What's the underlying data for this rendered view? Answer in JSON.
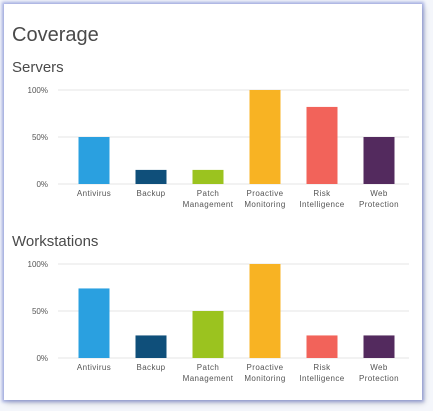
{
  "page_title": "Coverage",
  "chart_data": [
    {
      "type": "bar",
      "title": "Servers",
      "categories": [
        [
          "Antivirus"
        ],
        [
          "Backup"
        ],
        [
          "Patch",
          "Management"
        ],
        [
          "Proactive",
          "Monitoring"
        ],
        [
          "Risk",
          "Intelligence"
        ],
        [
          "Web",
          "Protection"
        ]
      ],
      "values": [
        50,
        15,
        15,
        100,
        82,
        50
      ],
      "colors": [
        "#2aa0e0",
        "#0f4f7a",
        "#9bc31f",
        "#f8b323",
        "#f2635a",
        "#532a5e"
      ],
      "ylim": [
        0,
        100
      ],
      "yticks": [
        {
          "value": 100,
          "label": "100%"
        },
        {
          "value": 50,
          "label": "50%"
        },
        {
          "value": 0,
          "label": "0%"
        }
      ],
      "xlabel": "",
      "ylabel": "",
      "grid": true
    },
    {
      "type": "bar",
      "title": "Workstations",
      "categories": [
        [
          "Antivirus"
        ],
        [
          "Backup"
        ],
        [
          "Patch",
          "Management"
        ],
        [
          "Proactive",
          "Monitoring"
        ],
        [
          "Risk",
          "Intelligence"
        ],
        [
          "Web",
          "Protection"
        ]
      ],
      "values": [
        74,
        24,
        50,
        100,
        24,
        24
      ],
      "colors": [
        "#2aa0e0",
        "#0f4f7a",
        "#9bc31f",
        "#f8b323",
        "#f2635a",
        "#532a5e"
      ],
      "ylim": [
        0,
        100
      ],
      "yticks": [
        {
          "value": 100,
          "label": "100%"
        },
        {
          "value": 50,
          "label": "50%"
        },
        {
          "value": 0,
          "label": "0%"
        }
      ],
      "xlabel": "",
      "ylabel": "",
      "grid": true
    }
  ]
}
